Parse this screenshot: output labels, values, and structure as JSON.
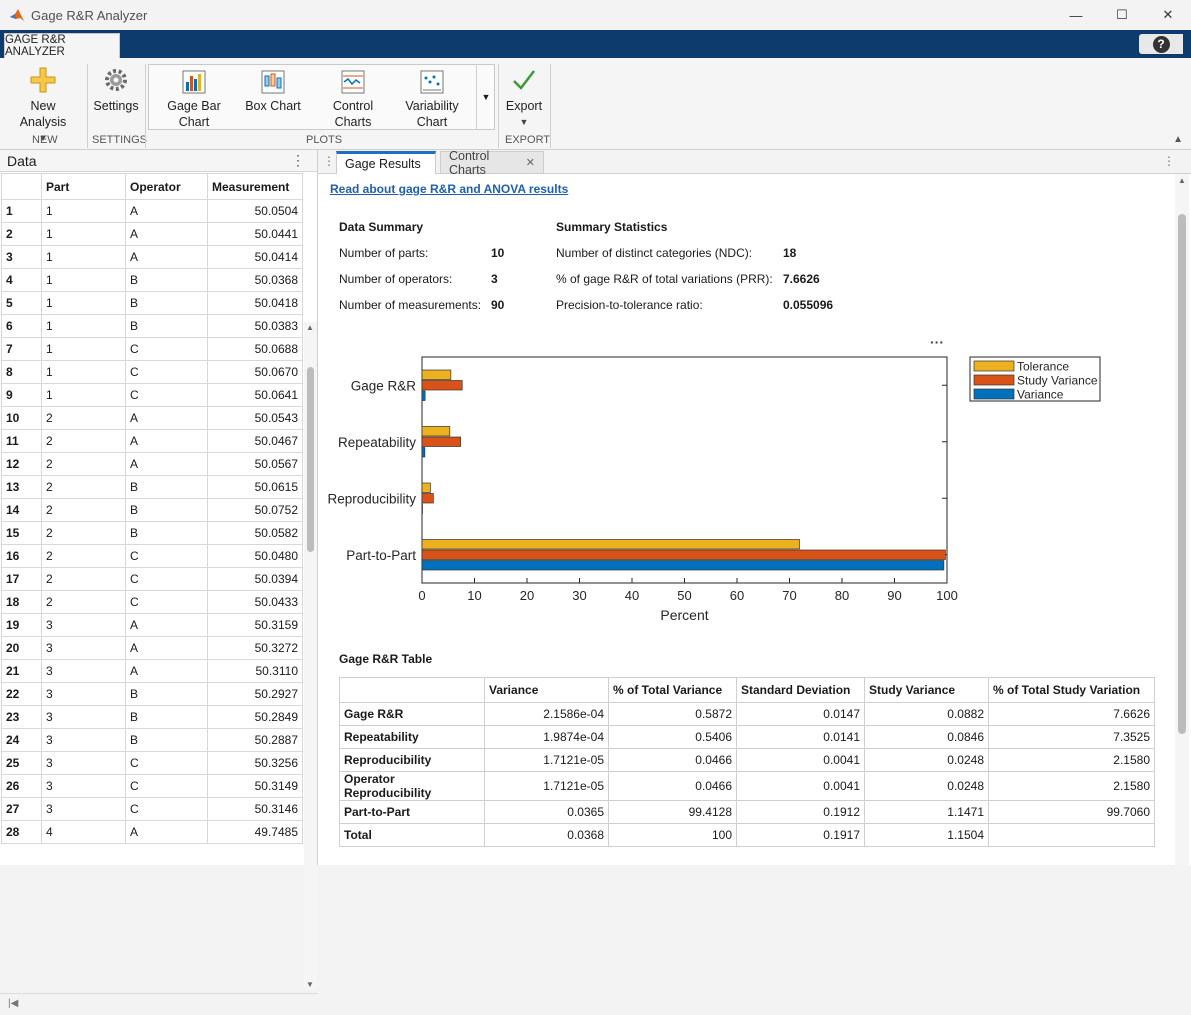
{
  "window": {
    "title": "Gage R&R Analyzer",
    "minimize": "—",
    "maximize": "☐",
    "close": "✕"
  },
  "app_tab": "GAGE R&R ANALYZER",
  "help_label": "?",
  "ribbon": {
    "new_analysis": "New Analysis",
    "new_group": "NEW",
    "settings": "Settings",
    "settings_group": "SETTINGS",
    "gage_bar_chart": [
      "Gage Bar",
      "Chart"
    ],
    "box_chart": "Box Chart",
    "control_charts": [
      "Control",
      "Charts"
    ],
    "variability_chart": [
      "Variability",
      "Chart"
    ],
    "plots_group": "PLOTS",
    "export": "Export",
    "export_group": "EXPORT"
  },
  "data_panel": {
    "title": "Data",
    "columns": [
      "",
      "Part",
      "Operator",
      "Measurement"
    ],
    "rows": [
      [
        "1",
        "1",
        "A",
        "50.0504"
      ],
      [
        "2",
        "1",
        "A",
        "50.0441"
      ],
      [
        "3",
        "1",
        "A",
        "50.0414"
      ],
      [
        "4",
        "1",
        "B",
        "50.0368"
      ],
      [
        "5",
        "1",
        "B",
        "50.0418"
      ],
      [
        "6",
        "1",
        "B",
        "50.0383"
      ],
      [
        "7",
        "1",
        "C",
        "50.0688"
      ],
      [
        "8",
        "1",
        "C",
        "50.0670"
      ],
      [
        "9",
        "1",
        "C",
        "50.0641"
      ],
      [
        "10",
        "2",
        "A",
        "50.0543"
      ],
      [
        "11",
        "2",
        "A",
        "50.0467"
      ],
      [
        "12",
        "2",
        "A",
        "50.0567"
      ],
      [
        "13",
        "2",
        "B",
        "50.0615"
      ],
      [
        "14",
        "2",
        "B",
        "50.0752"
      ],
      [
        "15",
        "2",
        "B",
        "50.0582"
      ],
      [
        "16",
        "2",
        "C",
        "50.0480"
      ],
      [
        "17",
        "2",
        "C",
        "50.0394"
      ],
      [
        "18",
        "2",
        "C",
        "50.0433"
      ],
      [
        "19",
        "3",
        "A",
        "50.3159"
      ],
      [
        "20",
        "3",
        "A",
        "50.3272"
      ],
      [
        "21",
        "3",
        "A",
        "50.3110"
      ],
      [
        "22",
        "3",
        "B",
        "50.2927"
      ],
      [
        "23",
        "3",
        "B",
        "50.2849"
      ],
      [
        "24",
        "3",
        "B",
        "50.2887"
      ],
      [
        "25",
        "3",
        "C",
        "50.3256"
      ],
      [
        "26",
        "3",
        "C",
        "50.3149"
      ],
      [
        "27",
        "3",
        "C",
        "50.3146"
      ],
      [
        "28",
        "4",
        "A",
        "49.7485"
      ]
    ]
  },
  "results_tabs": {
    "active": "Gage Results",
    "other": "Control Charts",
    "close_glyph": "✕"
  },
  "link_text": "Read about gage R&R and ANOVA results",
  "data_summary": {
    "heading": "Data Summary",
    "items": [
      {
        "label": "Number of parts:",
        "value": "10"
      },
      {
        "label": "Number of operators:",
        "value": "3"
      },
      {
        "label": "Number of measurements:",
        "value": "90"
      }
    ]
  },
  "summary_stats": {
    "heading": "Summary Statistics",
    "items": [
      {
        "label": "Number of distinct categories (NDC):",
        "value": "18"
      },
      {
        "label": "% of gage R&R of total variations (PRR):",
        "value": "7.6626"
      },
      {
        "label": "Precision-to-tolerance ratio:",
        "value": "0.055096"
      }
    ]
  },
  "chart_data": {
    "type": "bar",
    "orientation": "horizontal",
    "categories": [
      "Gage R&R",
      "Repeatability",
      "Reproducibility",
      "Part-to-Part"
    ],
    "series": [
      {
        "name": "Tolerance",
        "color": "#edb120",
        "values": [
          5.5,
          5.3,
          1.6,
          71.9
        ]
      },
      {
        "name": "Study Variance",
        "color": "#d95319",
        "values": [
          7.66,
          7.35,
          2.16,
          99.7
        ]
      },
      {
        "name": "Variance",
        "color": "#0072bd",
        "values": [
          0.59,
          0.54,
          0.05,
          99.4
        ]
      }
    ],
    "xlabel": "Percent",
    "xlim": [
      0,
      100
    ],
    "xticks": [
      "0",
      "10",
      "20",
      "30",
      "40",
      "50",
      "60",
      "70",
      "80",
      "90",
      "100"
    ],
    "legend_position": "outside-right",
    "menu_glyph": "···"
  },
  "grr_table": {
    "title": "Gage R&R Table",
    "columns": [
      "",
      "Variance",
      "% of Total Variance",
      "Standard Deviation",
      "Study Variance",
      "% of Total Study Variation"
    ],
    "rows": [
      [
        "Gage R&R",
        "2.1586e-04",
        "0.5872",
        "0.0147",
        "0.0882",
        "7.6626"
      ],
      [
        "Repeatability",
        "1.9874e-04",
        "0.5406",
        "0.0141",
        "0.0846",
        "7.3525"
      ],
      [
        "Reproducibility",
        "1.7121e-05",
        "0.0466",
        "0.0041",
        "0.0248",
        "2.1580"
      ],
      [
        "Operator Reproducibility",
        "1.7121e-05",
        "0.0466",
        "0.0041",
        "0.0248",
        "2.1580"
      ],
      [
        "Part-to-Part",
        "0.0365",
        "99.4128",
        "0.1912",
        "1.1471",
        "99.7060"
      ],
      [
        "Total",
        "0.0368",
        "100",
        "0.1917",
        "1.1504",
        ""
      ]
    ]
  }
}
